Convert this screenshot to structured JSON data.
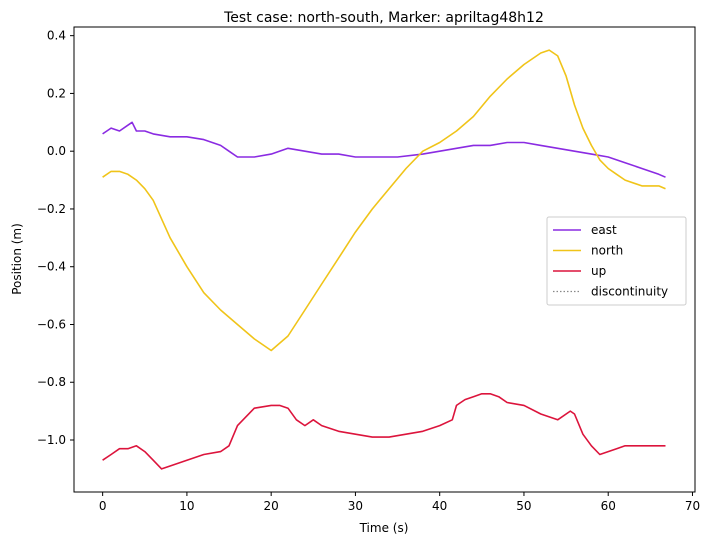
{
  "chart_data": {
    "type": "line",
    "title": "Test case: north-south, Marker: apriltag48h12",
    "xlabel": "Time (s)",
    "ylabel": "Position (m)",
    "xlim": [
      -3.4,
      70.3
    ],
    "ylim": [
      -1.18,
      0.43
    ],
    "xticks": [
      0,
      10,
      20,
      30,
      40,
      50,
      60,
      70
    ],
    "xtick_labels": [
      "0",
      "10",
      "20",
      "30",
      "40",
      "50",
      "60",
      "70"
    ],
    "yticks": [
      0.4,
      0.2,
      0.0,
      -0.2,
      -0.4,
      -0.6,
      -0.8,
      -1.0
    ],
    "ytick_labels": [
      "0.4",
      "0.2",
      "0.0",
      "−0.2",
      "−0.4",
      "−0.6",
      "−0.8",
      "−1.0"
    ],
    "grid": false,
    "legend_position": "center-right",
    "series": [
      {
        "name": "east",
        "color": "#8a2be2",
        "x": [
          0,
          1,
          2,
          3,
          3.5,
          4,
          5,
          6,
          8,
          10,
          12,
          14,
          15,
          16,
          18,
          20,
          22,
          24,
          26,
          28,
          30,
          32,
          35,
          38,
          40,
          42,
          44,
          46,
          48,
          50,
          52,
          54,
          56,
          58,
          60,
          62,
          64,
          66,
          66.8
        ],
        "y": [
          0.06,
          0.08,
          0.07,
          0.09,
          0.1,
          0.07,
          0.07,
          0.06,
          0.05,
          0.05,
          0.04,
          0.02,
          0.0,
          -0.02,
          -0.02,
          -0.01,
          0.01,
          0.0,
          -0.01,
          -0.01,
          -0.02,
          -0.02,
          -0.02,
          -0.01,
          0.0,
          0.01,
          0.02,
          0.02,
          0.03,
          0.03,
          0.02,
          0.01,
          0.0,
          -0.01,
          -0.02,
          -0.04,
          -0.06,
          -0.08,
          -0.09
        ]
      },
      {
        "name": "north",
        "color": "#f0c419",
        "x": [
          0,
          1,
          2,
          3,
          4,
          5,
          6,
          8,
          10,
          12,
          14,
          16,
          18,
          20,
          22,
          24,
          26,
          28,
          30,
          32,
          34,
          36,
          38,
          40,
          42,
          44,
          46,
          48,
          50,
          52,
          53,
          54,
          55,
          56,
          57,
          58,
          59,
          60,
          61,
          62,
          64,
          66,
          66.8
        ],
        "y": [
          -0.09,
          -0.07,
          -0.07,
          -0.08,
          -0.1,
          -0.13,
          -0.17,
          -0.3,
          -0.4,
          -0.49,
          -0.55,
          -0.6,
          -0.65,
          -0.69,
          -0.64,
          -0.55,
          -0.46,
          -0.37,
          -0.28,
          -0.2,
          -0.13,
          -0.06,
          0.0,
          0.03,
          0.07,
          0.12,
          0.19,
          0.25,
          0.3,
          0.34,
          0.35,
          0.33,
          0.26,
          0.16,
          0.08,
          0.02,
          -0.03,
          -0.06,
          -0.08,
          -0.1,
          -0.12,
          -0.12,
          -0.13
        ]
      },
      {
        "name": "up",
        "color": "#dc143c",
        "x": [
          0,
          1,
          2,
          3,
          4,
          5,
          6,
          7,
          8,
          10,
          12,
          14,
          15,
          16,
          18,
          20,
          21,
          22,
          23,
          24,
          25,
          26,
          28,
          30,
          32,
          34,
          36,
          38,
          40,
          41.5,
          42,
          43,
          44,
          45,
          46,
          47,
          48,
          50,
          52,
          54,
          55.5,
          56,
          57,
          58,
          59,
          60,
          61,
          62,
          64,
          66,
          66.8
        ],
        "y": [
          -1.07,
          -1.05,
          -1.03,
          -1.03,
          -1.02,
          -1.04,
          -1.07,
          -1.1,
          -1.09,
          -1.07,
          -1.05,
          -1.04,
          -1.02,
          -0.95,
          -0.89,
          -0.88,
          -0.88,
          -0.89,
          -0.93,
          -0.95,
          -0.93,
          -0.95,
          -0.97,
          -0.98,
          -0.99,
          -0.99,
          -0.98,
          -0.97,
          -0.95,
          -0.93,
          -0.88,
          -0.86,
          -0.85,
          -0.84,
          -0.84,
          -0.85,
          -0.87,
          -0.88,
          -0.91,
          -0.93,
          -0.9,
          -0.91,
          -0.98,
          -1.02,
          -1.05,
          -1.04,
          -1.03,
          -1.02,
          -1.02,
          -1.02,
          -1.02
        ]
      },
      {
        "name": "discontinuity",
        "color": "#888888",
        "style": "dotted",
        "x": [],
        "y": []
      }
    ]
  }
}
